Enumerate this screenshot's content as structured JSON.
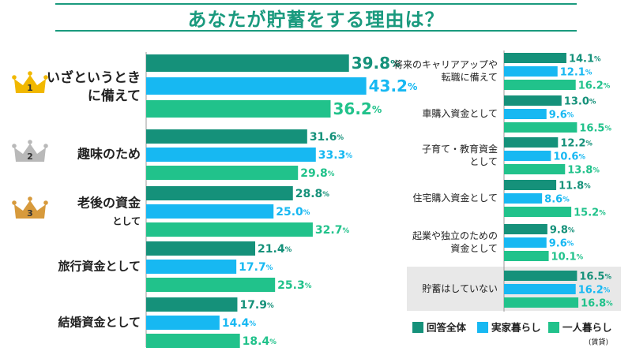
{
  "title": "あなたが貯蓄をする理由は？",
  "colors": {
    "total": "#15917a",
    "family_home": "#17b8f2",
    "living_alone": "#21c28b",
    "gold": "#f1b800",
    "silver": "#b9b9b9",
    "bronze": "#d79a3c",
    "title": "#1a9a7e"
  },
  "chart_data": {
    "type": "bar",
    "series": [
      {
        "name": "回答全体"
      },
      {
        "name": "実家暮らし"
      },
      {
        "name": "一人暮らし",
        "note": "(賃貸)"
      }
    ],
    "left_panel": {
      "categories": [
        {
          "lines": [
            "いざというとき",
            "に備えて"
          ],
          "rank": "1",
          "values": [
            39.8,
            43.2,
            36.2
          ]
        },
        {
          "lines": [
            "趣味のため"
          ],
          "rank": "2",
          "values": [
            31.6,
            33.3,
            29.8
          ]
        },
        {
          "lines": [
            "老後の資金",
            "として"
          ],
          "rank": "3",
          "values": [
            28.8,
            25.0,
            32.7
          ]
        },
        {
          "lines": [
            "旅行資金として"
          ],
          "values": [
            21.4,
            17.7,
            25.3
          ]
        },
        {
          "lines": [
            "結婚資金として"
          ],
          "values": [
            17.9,
            14.4,
            18.4
          ]
        }
      ]
    },
    "right_panel": {
      "categories": [
        {
          "lines": [
            "将来のキャリアアップや",
            "転職に備えて"
          ],
          "values": [
            14.1,
            12.1,
            16.2
          ]
        },
        {
          "lines": [
            "車購入資金として"
          ],
          "values": [
            13.0,
            9.6,
            16.5
          ]
        },
        {
          "lines": [
            "子育て・教育資金",
            "として"
          ],
          "values": [
            12.2,
            10.6,
            13.8
          ]
        },
        {
          "lines": [
            "住宅購入資金として"
          ],
          "values": [
            11.8,
            8.6,
            15.2
          ]
        },
        {
          "lines": [
            "起業や独立のための",
            "資金として"
          ],
          "values": [
            9.8,
            9.6,
            10.1
          ]
        },
        {
          "lines": [
            "貯蓄はしていない"
          ],
          "values": [
            16.5,
            16.2,
            16.8
          ],
          "highlight": true
        }
      ]
    },
    "value_unit": "%"
  }
}
